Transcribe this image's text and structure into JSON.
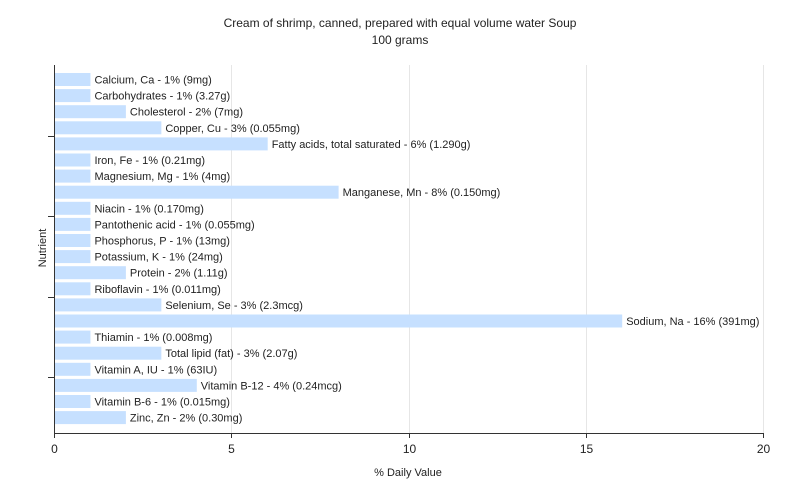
{
  "chart_data": {
    "type": "bar",
    "orientation": "horizontal",
    "title": "Cream of shrimp, canned, prepared with equal volume water Soup",
    "subtitle": "100 grams",
    "xlabel": "% Daily Value",
    "ylabel": "Nutrient",
    "xlim": [
      0,
      20
    ],
    "xticks": [
      0,
      5,
      10,
      15,
      20
    ],
    "grid": true,
    "bar_color": "#c6e0ff",
    "categories": [
      "Calcium, Ca",
      "Carbohydrates",
      "Cholesterol",
      "Copper, Cu",
      "Fatty acids, total saturated",
      "Iron, Fe",
      "Magnesium, Mg",
      "Manganese, Mn",
      "Niacin",
      "Pantothenic acid",
      "Phosphorus, P",
      "Potassium, K",
      "Protein",
      "Riboflavin",
      "Selenium, Se",
      "Sodium, Na",
      "Thiamin",
      "Total lipid (fat)",
      "Vitamin A, IU",
      "Vitamin B-12",
      "Vitamin B-6",
      "Zinc, Zn"
    ],
    "values": [
      1,
      1,
      2,
      3,
      6,
      1,
      1,
      8,
      1,
      1,
      1,
      1,
      2,
      1,
      3,
      16,
      1,
      3,
      1,
      4,
      1,
      2
    ],
    "labels": [
      "Calcium, Ca - 1% (9mg)",
      "Carbohydrates - 1% (3.27g)",
      "Cholesterol - 2% (7mg)",
      "Copper, Cu - 3% (0.055mg)",
      "Fatty acids, total saturated - 6% (1.290g)",
      "Iron, Fe - 1% (0.21mg)",
      "Magnesium, Mg - 1% (4mg)",
      "Manganese, Mn - 8% (0.150mg)",
      "Niacin - 1% (0.170mg)",
      "Pantothenic acid - 1% (0.055mg)",
      "Phosphorus, P - 1% (13mg)",
      "Potassium, K - 1% (24mg)",
      "Protein - 2% (1.11g)",
      "Riboflavin - 1% (0.011mg)",
      "Selenium, Se - 3% (2.3mcg)",
      "Sodium, Na - 16% (391mg)",
      "Thiamin - 1% (0.008mg)",
      "Total lipid (fat) - 3% (2.07g)",
      "Vitamin A, IU - 1% (63IU)",
      "Vitamin B-12 - 4% (0.24mcg)",
      "Vitamin B-6 - 1% (0.015mg)",
      "Zinc, Zn - 2% (0.30mg)"
    ]
  }
}
